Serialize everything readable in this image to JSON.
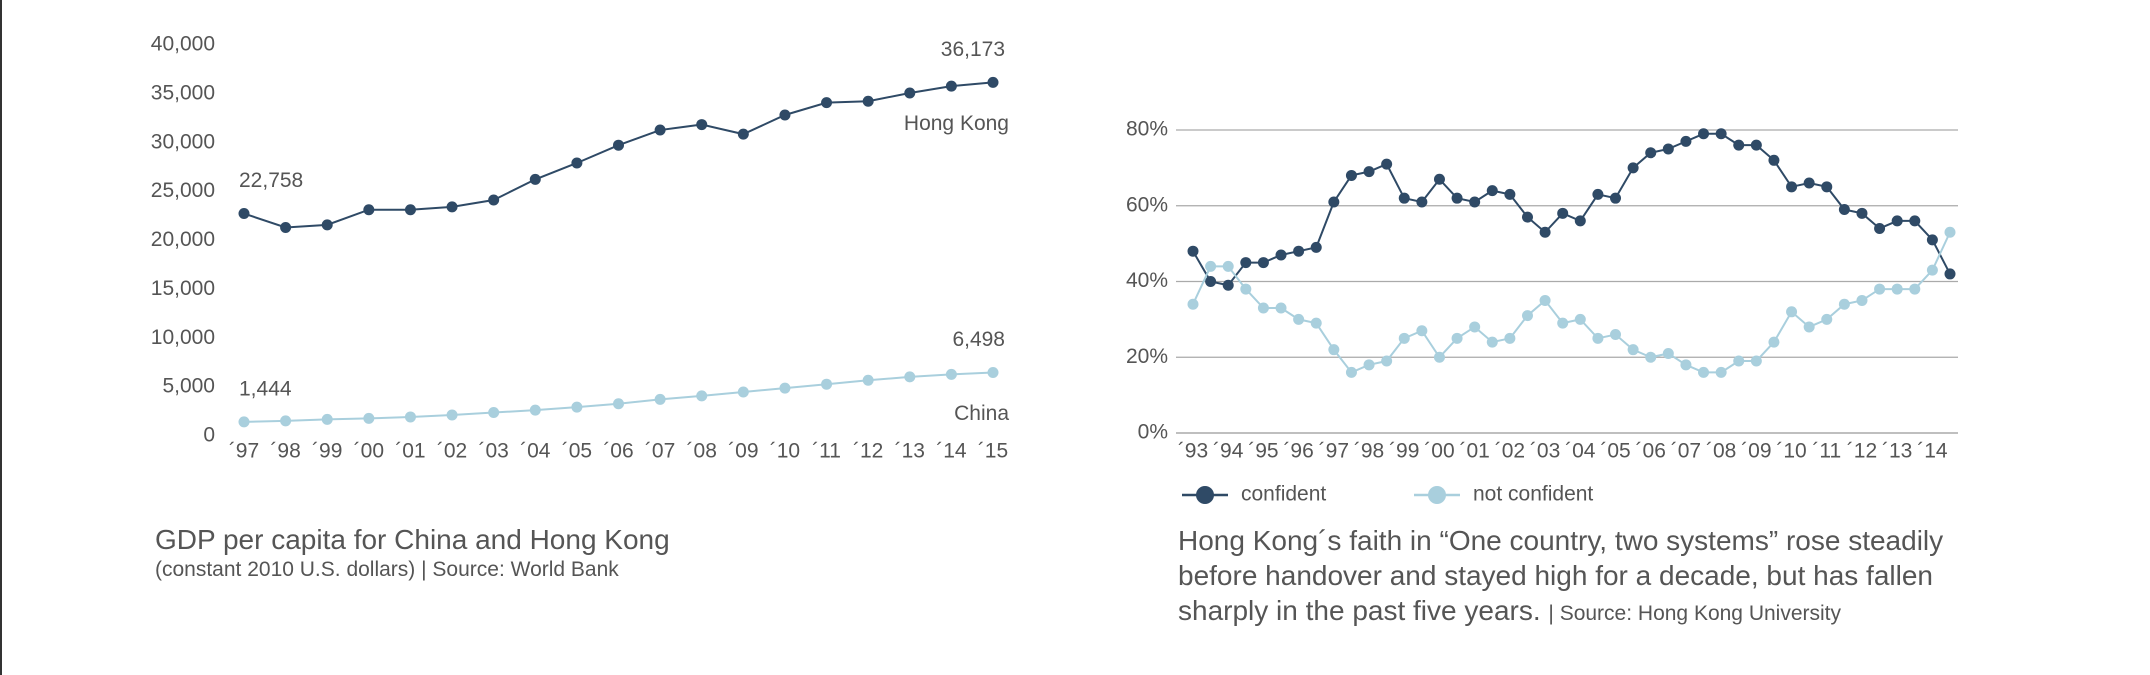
{
  "chart_data": [
    {
      "type": "line",
      "title": "GDP per capita for China and Hong Kong",
      "subtitle": "(constant 2010 U.S. dollars) | Source: World Bank",
      "categories": [
        "´97",
        "´98",
        "´99",
        "´00",
        "´01",
        "´02",
        "´03",
        "´04",
        "´05",
        "´06",
        "´07",
        "´08",
        "´09",
        "´10",
        "´11",
        "´12",
        "´13",
        "´14",
        "´15"
      ],
      "series": [
        {
          "name": "Hong Kong",
          "color": "#2f4a66",
          "values": [
            22758,
            21330,
            21600,
            23150,
            23150,
            23440,
            24140,
            26250,
            27930,
            29750,
            31300,
            31860,
            30880,
            32840,
            34100,
            34250,
            35090,
            35790,
            36173
          ],
          "value_labels": [
            "22,758",
            null,
            null,
            null,
            null,
            null,
            null,
            null,
            null,
            null,
            null,
            null,
            null,
            null,
            null,
            null,
            null,
            null,
            "36,173"
          ]
        },
        {
          "name": "China",
          "color": "#a9cfdd",
          "values": [
            1444,
            1550,
            1700,
            1800,
            1950,
            2150,
            2400,
            2650,
            2950,
            3300,
            3750,
            4100,
            4500,
            4900,
            5300,
            5700,
            6050,
            6300,
            6498
          ],
          "value_labels": [
            "1,444",
            null,
            null,
            null,
            null,
            null,
            null,
            null,
            null,
            null,
            null,
            null,
            null,
            null,
            null,
            null,
            null,
            null,
            "6,498"
          ]
        }
      ],
      "ylim": [
        0,
        40000
      ],
      "yticks": [
        0,
        {
          "value": 5000,
          "label": "5,000"
        },
        {
          "value": 10000,
          "label": "10,000"
        },
        {
          "value": 15000,
          "label": "15,000"
        },
        {
          "value": 20000,
          "label": "20,000"
        },
        {
          "value": 25000,
          "label": "25,000"
        },
        {
          "value": 30000,
          "label": "30,000"
        },
        {
          "value": 35000,
          "label": "35,000"
        },
        {
          "value": 40000,
          "label": "40,000"
        }
      ],
      "grid": false
    },
    {
      "type": "line",
      "title": "Hong Kong´s faith in “One country, two systems” rose steadily before handover and stayed high for a decade, but has fallen sharply in the past five years.",
      "source": "| Source: Hong Kong University",
      "categories": [
        "´93",
        null,
        "´94",
        null,
        "´95",
        null,
        "´96",
        null,
        "´97",
        null,
        "´98",
        null,
        "´99",
        null,
        "´00",
        null,
        "´01",
        null,
        "´02",
        null,
        "´03",
        null,
        "´04",
        null,
        "´05",
        null,
        "´06",
        null,
        "´07",
        null,
        "´08",
        null,
        "´09",
        null,
        "´10",
        null,
        "´11",
        null,
        "´12",
        null,
        "´13",
        null,
        "´14",
        null
      ],
      "series": [
        {
          "name": "confident",
          "color": "#2f4a66",
          "values": [
            48,
            40,
            39,
            45,
            45,
            47,
            48,
            49,
            61,
            68,
            69,
            71,
            62,
            61,
            67,
            62,
            61,
            64,
            63,
            57,
            53,
            58,
            56,
            63,
            62,
            70,
            74,
            75,
            77,
            79,
            79,
            76,
            76,
            72,
            65,
            66,
            65,
            59,
            58,
            54,
            56,
            56,
            51,
            42
          ]
        },
        {
          "name": "not confident",
          "color": "#a9cfdd",
          "values": [
            34,
            44,
            44,
            38,
            33,
            33,
            30,
            29,
            22,
            16,
            18,
            19,
            25,
            27,
            20,
            25,
            28,
            24,
            25,
            31,
            35,
            29,
            30,
            25,
            26,
            22,
            20,
            21,
            18,
            16,
            16,
            19,
            19,
            24,
            32,
            28,
            30,
            34,
            35,
            38,
            38,
            38,
            43,
            53
          ]
        }
      ],
      "ylim": [
        0,
        80
      ],
      "yticks": [
        {
          "value": 0,
          "label": "0%"
        },
        {
          "value": 20,
          "label": "20%"
        },
        {
          "value": 40,
          "label": "40%"
        },
        {
          "value": 60,
          "label": "60%"
        },
        {
          "value": 80,
          "label": "80%"
        }
      ],
      "grid": true
    }
  ]
}
